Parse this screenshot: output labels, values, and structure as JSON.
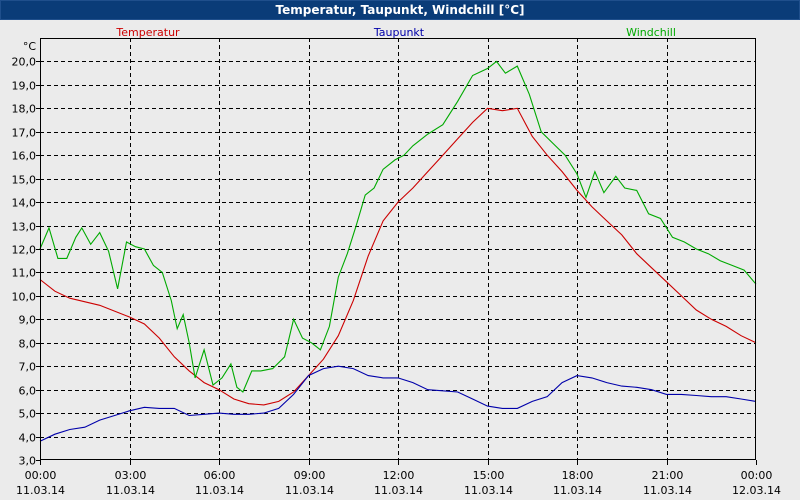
{
  "window": {
    "title": "Temperatur, Taupunkt, Windchill [°C]"
  },
  "chart_data": {
    "type": "line",
    "title": "Temperatur, Taupunkt, Windchill [°C]",
    "ylabel": "°C",
    "ylim": [
      3.0,
      21.0
    ],
    "yticks": [
      "3,0",
      "4,0",
      "5,0",
      "6,0",
      "7,0",
      "8,0",
      "9,0",
      "10,0",
      "11,0",
      "12,0",
      "13,0",
      "14,0",
      "15,0",
      "16,0",
      "17,0",
      "18,0",
      "19,0",
      "20,0"
    ],
    "xlim": [
      0,
      24
    ],
    "xticks": [
      {
        "time": "00:00",
        "date": "11.03.14"
      },
      {
        "time": "03:00",
        "date": "11.03.14"
      },
      {
        "time": "06:00",
        "date": "11.03.14"
      },
      {
        "time": "09:00",
        "date": "11.03.14"
      },
      {
        "time": "12:00",
        "date": "11.03.14"
      },
      {
        "time": "15:00",
        "date": "11.03.14"
      },
      {
        "time": "18:00",
        "date": "11.03.14"
      },
      {
        "time": "21:00",
        "date": "11.03.14"
      },
      {
        "time": "00:00",
        "date": "12.03.14"
      }
    ],
    "grid": true,
    "series": [
      {
        "name": "Temperatur",
        "color": "#cc0000",
        "points": [
          [
            0,
            10.7
          ],
          [
            0.5,
            10.2
          ],
          [
            1,
            9.9
          ],
          [
            2,
            9.6
          ],
          [
            3,
            9.1
          ],
          [
            3.5,
            8.8
          ],
          [
            4,
            8.2
          ],
          [
            4.5,
            7.4
          ],
          [
            5,
            6.8
          ],
          [
            5.5,
            6.3
          ],
          [
            6,
            6.0
          ],
          [
            6.5,
            5.6
          ],
          [
            7,
            5.4
          ],
          [
            7.5,
            5.35
          ],
          [
            8,
            5.5
          ],
          [
            8.5,
            5.9
          ],
          [
            9,
            6.6
          ],
          [
            9.5,
            7.3
          ],
          [
            10,
            8.3
          ],
          [
            10.5,
            9.8
          ],
          [
            11,
            11.7
          ],
          [
            11.5,
            13.2
          ],
          [
            12,
            14.0
          ],
          [
            12.5,
            14.6
          ],
          [
            13,
            15.3
          ],
          [
            13.5,
            16.0
          ],
          [
            14,
            16.7
          ],
          [
            14.5,
            17.4
          ],
          [
            15,
            18.0
          ],
          [
            15.5,
            17.9
          ],
          [
            16,
            18.0
          ],
          [
            16.5,
            16.8
          ],
          [
            17,
            16.0
          ],
          [
            17.5,
            15.3
          ],
          [
            18,
            14.5
          ],
          [
            18.5,
            13.8
          ],
          [
            19,
            13.2
          ],
          [
            19.5,
            12.6
          ],
          [
            20,
            11.8
          ],
          [
            20.5,
            11.2
          ],
          [
            21,
            10.6
          ],
          [
            21.5,
            10.0
          ],
          [
            22,
            9.4
          ],
          [
            22.5,
            9.0
          ],
          [
            23,
            8.7
          ],
          [
            23.5,
            8.3
          ],
          [
            24,
            8.0
          ]
        ]
      },
      {
        "name": "Taupunkt",
        "color": "#0000aa",
        "points": [
          [
            0,
            3.8
          ],
          [
            0.5,
            4.1
          ],
          [
            1,
            4.3
          ],
          [
            1.5,
            4.4
          ],
          [
            2,
            4.7
          ],
          [
            2.5,
            4.9
          ],
          [
            3,
            5.1
          ],
          [
            3.5,
            5.25
          ],
          [
            4,
            5.2
          ],
          [
            4.5,
            5.2
          ],
          [
            5,
            4.9
          ],
          [
            5.5,
            4.95
          ],
          [
            6,
            5.0
          ],
          [
            6.5,
            4.95
          ],
          [
            7,
            4.95
          ],
          [
            7.5,
            5.0
          ],
          [
            8,
            5.2
          ],
          [
            8.5,
            5.8
          ],
          [
            9,
            6.6
          ],
          [
            9.5,
            6.9
          ],
          [
            10,
            7.0
          ],
          [
            10.5,
            6.9
          ],
          [
            11,
            6.6
          ],
          [
            11.5,
            6.5
          ],
          [
            12,
            6.5
          ],
          [
            12.5,
            6.3
          ],
          [
            13,
            6.0
          ],
          [
            13.5,
            5.95
          ],
          [
            14,
            5.9
          ],
          [
            14.5,
            5.6
          ],
          [
            15,
            5.3
          ],
          [
            15.5,
            5.2
          ],
          [
            16,
            5.2
          ],
          [
            16.5,
            5.5
          ],
          [
            17,
            5.7
          ],
          [
            17.5,
            6.3
          ],
          [
            18,
            6.6
          ],
          [
            18.5,
            6.5
          ],
          [
            19,
            6.3
          ],
          [
            19.5,
            6.15
          ],
          [
            20,
            6.1
          ],
          [
            20.5,
            6.0
          ],
          [
            21,
            5.8
          ],
          [
            21.5,
            5.8
          ],
          [
            22,
            5.75
          ],
          [
            22.5,
            5.7
          ],
          [
            23,
            5.7
          ],
          [
            23.5,
            5.6
          ],
          [
            24,
            5.5
          ]
        ]
      },
      {
        "name": "Windchill",
        "color": "#00aa00",
        "points": [
          [
            0,
            12.0
          ],
          [
            0.3,
            12.9
          ],
          [
            0.6,
            11.6
          ],
          [
            0.9,
            11.6
          ],
          [
            1.2,
            12.5
          ],
          [
            1.4,
            12.9
          ],
          [
            1.7,
            12.2
          ],
          [
            2,
            12.7
          ],
          [
            2.3,
            11.9
          ],
          [
            2.6,
            10.3
          ],
          [
            2.9,
            12.3
          ],
          [
            3.2,
            12.1
          ],
          [
            3.5,
            12.0
          ],
          [
            3.8,
            11.3
          ],
          [
            4.1,
            11.0
          ],
          [
            4.4,
            9.8
          ],
          [
            4.6,
            8.6
          ],
          [
            4.8,
            9.2
          ],
          [
            5.0,
            8.0
          ],
          [
            5.2,
            6.5
          ],
          [
            5.5,
            7.7
          ],
          [
            5.8,
            6.2
          ],
          [
            6.1,
            6.5
          ],
          [
            6.4,
            7.1
          ],
          [
            6.6,
            6.1
          ],
          [
            6.8,
            5.9
          ],
          [
            7.1,
            6.8
          ],
          [
            7.4,
            6.8
          ],
          [
            7.8,
            6.9
          ],
          [
            8.2,
            7.4
          ],
          [
            8.5,
            9.0
          ],
          [
            8.8,
            8.2
          ],
          [
            9.1,
            8.0
          ],
          [
            9.4,
            7.7
          ],
          [
            9.7,
            8.7
          ],
          [
            10,
            10.8
          ],
          [
            10.3,
            11.8
          ],
          [
            10.6,
            13.0
          ],
          [
            10.9,
            14.3
          ],
          [
            11.2,
            14.6
          ],
          [
            11.5,
            15.4
          ],
          [
            11.9,
            15.8
          ],
          [
            12.2,
            16.0
          ],
          [
            12.5,
            16.4
          ],
          [
            13,
            16.9
          ],
          [
            13.5,
            17.3
          ],
          [
            14,
            18.3
          ],
          [
            14.5,
            19.4
          ],
          [
            15,
            19.7
          ],
          [
            15.3,
            20.0
          ],
          [
            15.6,
            19.5
          ],
          [
            16,
            19.8
          ],
          [
            16.4,
            18.6
          ],
          [
            16.8,
            17.0
          ],
          [
            17.2,
            16.5
          ],
          [
            17.6,
            16.0
          ],
          [
            18,
            15.2
          ],
          [
            18.3,
            14.2
          ],
          [
            18.6,
            15.3
          ],
          [
            18.9,
            14.4
          ],
          [
            19.3,
            15.1
          ],
          [
            19.6,
            14.6
          ],
          [
            20,
            14.5
          ],
          [
            20.4,
            13.5
          ],
          [
            20.8,
            13.3
          ],
          [
            21.2,
            12.5
          ],
          [
            21.6,
            12.3
          ],
          [
            22,
            12.0
          ],
          [
            22.4,
            11.8
          ],
          [
            22.8,
            11.5
          ],
          [
            23.2,
            11.3
          ],
          [
            23.6,
            11.1
          ],
          [
            24,
            10.5
          ]
        ]
      }
    ]
  }
}
